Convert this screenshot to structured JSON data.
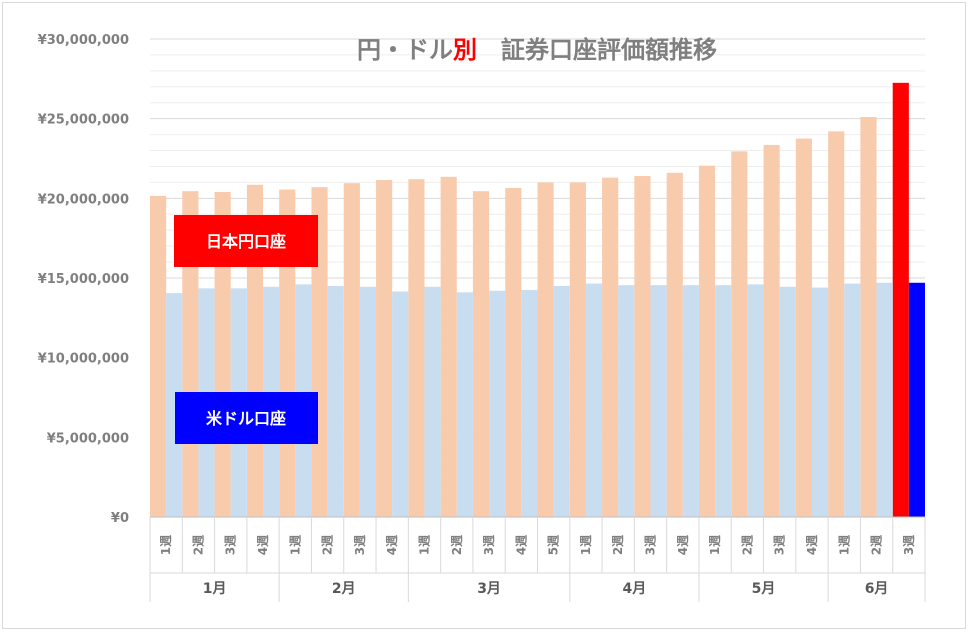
{
  "colors": {
    "yen_faded": "#f8cbad",
    "usd_faded": "#c9ddf1",
    "yen_highlight": "#ff0000",
    "usd_highlight": "#0000ff",
    "title_gray": "#7f7f7f",
    "title_red": "#ff0000",
    "gridline": "#d9d9d9"
  },
  "chart_data": {
    "type": "bar",
    "title_parts": [
      "円・ドル",
      "別",
      "　証券口座評価額推移"
    ],
    "legend": [
      {
        "label": "日本円口座",
        "color": "#ff0000"
      },
      {
        "label": "米ドル口座",
        "color": "#0000ff"
      }
    ],
    "legend_placement": "inside-left",
    "grid": true,
    "ylim": [
      0,
      30000000
    ],
    "yticks": [
      "¥0",
      "¥5,000,000",
      "¥10,000,000",
      "¥15,000,000",
      "¥20,000,000",
      "¥25,000,000",
      "¥30,000,000"
    ],
    "categories": [
      "1週",
      "2週",
      "3週",
      "4週",
      "1週",
      "2週",
      "3週",
      "4週",
      "1週",
      "2週",
      "3週",
      "4週",
      "5週",
      "1週",
      "2週",
      "3週",
      "4週",
      "1週",
      "2週",
      "3週",
      "4週",
      "1週",
      "2週",
      "3週"
    ],
    "months": [
      {
        "label": "1月",
        "weeks": 4
      },
      {
        "label": "2月",
        "weeks": 4
      },
      {
        "label": "3月",
        "weeks": 5
      },
      {
        "label": "4月",
        "weeks": 4
      },
      {
        "label": "5月",
        "weeks": 4
      },
      {
        "label": "6月",
        "weeks": 3
      }
    ],
    "series": [
      {
        "name": "日本円口座",
        "values": [
          20150000,
          20450000,
          20400000,
          20850000,
          20550000,
          20700000,
          20950000,
          21150000,
          21200000,
          21350000,
          20450000,
          20650000,
          21000000,
          21000000,
          21300000,
          21400000,
          21600000,
          22050000,
          22950000,
          23350000,
          23750000,
          24200000,
          25100000,
          27250000
        ]
      },
      {
        "name": "米ドル口座",
        "values": [
          14050000,
          14350000,
          14350000,
          14450000,
          14600000,
          14500000,
          14450000,
          14150000,
          14450000,
          14100000,
          14200000,
          14250000,
          14500000,
          14650000,
          14550000,
          14550000,
          14550000,
          14550000,
          14600000,
          14450000,
          14400000,
          14650000,
          14700000,
          14700000
        ]
      }
    ],
    "highlight_index": 23
  }
}
